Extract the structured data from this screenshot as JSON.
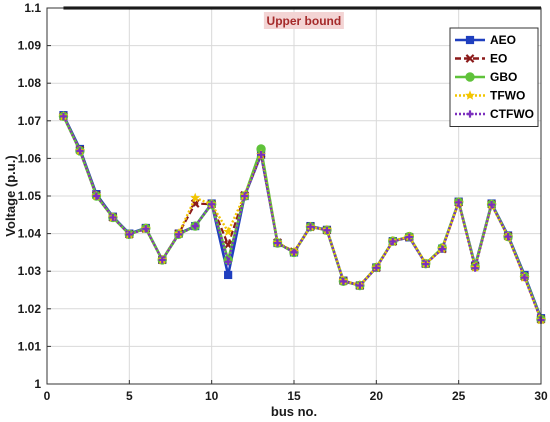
{
  "chart_data": {
    "type": "line",
    "xlabel": "bus no.",
    "ylabel": "Voltage (p.u.)",
    "xlim": [
      0,
      30
    ],
    "ylim": [
      1,
      1.1
    ],
    "x_ticks": [
      0,
      5,
      10,
      15,
      20,
      25,
      30
    ],
    "y_ticks": [
      1,
      1.01,
      1.02,
      1.03,
      1.04,
      1.05,
      1.06,
      1.07,
      1.08,
      1.09,
      1.1
    ],
    "grid": true,
    "legend_position": "top-right",
    "x": [
      1,
      2,
      3,
      4,
      5,
      6,
      7,
      8,
      9,
      10,
      11,
      12,
      13,
      14,
      15,
      16,
      17,
      18,
      19,
      20,
      21,
      22,
      23,
      24,
      25,
      26,
      27,
      28,
      29,
      30
    ],
    "series": [
      {
        "name": "AEO",
        "color": "#1f3fbf",
        "marker": "square",
        "dash": "solid",
        "values": [
          1.0715,
          1.0625,
          1.0505,
          1.0445,
          1.04,
          1.0415,
          1.033,
          1.04,
          1.042,
          1.048,
          1.029,
          1.05,
          1.061,
          1.0375,
          1.035,
          1.042,
          1.041,
          1.0275,
          1.0262,
          1.031,
          1.038,
          1.039,
          1.032,
          1.036,
          1.0485,
          1.0315,
          1.048,
          1.0395,
          1.029,
          1.0175
        ]
      },
      {
        "name": "EO",
        "color": "#8b1a1a",
        "marker": "x",
        "dash": "dashed",
        "values": [
          1.0712,
          1.0622,
          1.0502,
          1.0443,
          1.0398,
          1.0413,
          1.033,
          1.04,
          1.048,
          1.0478,
          1.037,
          1.0502,
          1.0612,
          1.0376,
          1.0352,
          1.0418,
          1.0409,
          1.0274,
          1.0262,
          1.0309,
          1.0379,
          1.0391,
          1.032,
          1.0359,
          1.0483,
          1.0313,
          1.0478,
          1.0393,
          1.0286,
          1.0172
        ]
      },
      {
        "name": "GBO",
        "color": "#5fc23a",
        "marker": "circle",
        "dash": "solid",
        "values": [
          1.0712,
          1.062,
          1.05,
          1.0443,
          1.0398,
          1.0414,
          1.033,
          1.0398,
          1.042,
          1.0478,
          1.033,
          1.05,
          1.0625,
          1.0375,
          1.035,
          1.0418,
          1.0409,
          1.0273,
          1.0262,
          1.031,
          1.038,
          1.0392,
          1.032,
          1.0362,
          1.0484,
          1.0312,
          1.0478,
          1.0392,
          1.0286,
          1.0172
        ]
      },
      {
        "name": "TFWO",
        "color": "#f2c500",
        "marker": "star",
        "dash": "dotted",
        "values": [
          1.0712,
          1.062,
          1.05,
          1.0443,
          1.0398,
          1.0413,
          1.033,
          1.04,
          1.0495,
          1.0478,
          1.0405,
          1.0502,
          1.061,
          1.0376,
          1.0352,
          1.0418,
          1.041,
          1.0275,
          1.0263,
          1.031,
          1.038,
          1.0392,
          1.032,
          1.036,
          1.0482,
          1.031,
          1.0476,
          1.0392,
          1.0283,
          1.017
        ]
      },
      {
        "name": "CTFWO",
        "color": "#7b2fbe",
        "marker": "plus",
        "dash": "dotted",
        "values": [
          1.0712,
          1.062,
          1.05,
          1.0443,
          1.0398,
          1.0413,
          1.033,
          1.0398,
          1.042,
          1.0478,
          1.0325,
          1.05,
          1.061,
          1.0375,
          1.035,
          1.0418,
          1.0409,
          1.0273,
          1.0262,
          1.0309,
          1.0379,
          1.0391,
          1.0319,
          1.0359,
          1.0483,
          1.0308,
          1.0477,
          1.0392,
          1.0283,
          1.017
        ]
      }
    ],
    "upper_bound": {
      "label": "Upper bound",
      "value": 1.1,
      "x_range": [
        1,
        30
      ],
      "color": "#000000"
    }
  }
}
